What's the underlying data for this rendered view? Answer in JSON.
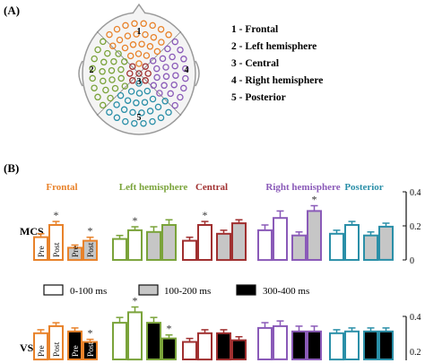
{
  "panel_a_label": "(A)",
  "panel_b_label": "(B)",
  "region_legend": [
    "1 - Frontal",
    "2 - Left hemisphere",
    "3 - Central",
    "4 - Right hemisphere",
    "5 - Posterior"
  ],
  "region_numbers": [
    "1",
    "2",
    "3",
    "4",
    "5"
  ],
  "colors": {
    "frontal": "#e8822a",
    "left": "#7aa33a",
    "central": "#a03030",
    "right": "#8a5ab8",
    "posterior": "#2a8fa8",
    "gray_fill": "#c6c6c6",
    "black_fill": "#000000"
  },
  "time_legend": [
    "0-100 ms",
    "100-200 ms",
    "300-400 ms"
  ],
  "row_labels": [
    "MCS",
    "VS"
  ],
  "ytick_labels_visible": [
    "0.4",
    "0.2",
    "0"
  ],
  "chart_data": {
    "type": "bar",
    "group_titles": [
      "Frontal",
      "Left hemisphere",
      "Central",
      "Right hemisphere",
      "Posterior"
    ],
    "group_colors": [
      "#e8822a",
      "#7aa33a",
      "#a03030",
      "#8a5ab8",
      "#2a8fa8"
    ],
    "time_windows": [
      "0-100 ms",
      "100-200 ms",
      "300-400 ms"
    ],
    "pre_label": "Pre",
    "post_label": "Post",
    "yticks": [
      0.4,
      0.2,
      0
    ],
    "ylim": [
      0,
      0.4
    ],
    "significance_mark": "*",
    "rows": [
      {
        "name": "MCS",
        "groups": [
          {
            "bars": [
              {
                "v": 0.13,
                "e": 0.02,
                "fill": "white",
                "label": "Pre"
              },
              {
                "v": 0.2,
                "e": 0.02,
                "fill": "white",
                "label": "Post",
                "star": true
              },
              {
                "v": 0.07,
                "e": 0.015,
                "fill": "gray",
                "label": "Pre"
              },
              {
                "v": 0.11,
                "e": 0.02,
                "fill": "gray",
                "label": "Post",
                "star": true
              }
            ]
          },
          {
            "bars": [
              {
                "v": 0.12,
                "e": 0.02,
                "fill": "white"
              },
              {
                "v": 0.17,
                "e": 0.02,
                "fill": "white",
                "star": true
              },
              {
                "v": 0.16,
                "e": 0.03,
                "fill": "gray"
              },
              {
                "v": 0.2,
                "e": 0.03,
                "fill": "gray"
              }
            ]
          },
          {
            "bars": [
              {
                "v": 0.11,
                "e": 0.02,
                "fill": "white"
              },
              {
                "v": 0.2,
                "e": 0.02,
                "fill": "white",
                "star": true
              },
              {
                "v": 0.15,
                "e": 0.02,
                "fill": "gray"
              },
              {
                "v": 0.21,
                "e": 0.02,
                "fill": "gray"
              }
            ]
          },
          {
            "bars": [
              {
                "v": 0.17,
                "e": 0.03,
                "fill": "white"
              },
              {
                "v": 0.24,
                "e": 0.04,
                "fill": "white"
              },
              {
                "v": 0.14,
                "e": 0.02,
                "fill": "gray"
              },
              {
                "v": 0.28,
                "e": 0.03,
                "fill": "gray",
                "star": true
              }
            ]
          },
          {
            "bars": [
              {
                "v": 0.15,
                "e": 0.02,
                "fill": "white"
              },
              {
                "v": 0.2,
                "e": 0.02,
                "fill": "white"
              },
              {
                "v": 0.14,
                "e": 0.02,
                "fill": "gray"
              },
              {
                "v": 0.19,
                "e": 0.02,
                "fill": "gray"
              }
            ]
          }
        ]
      },
      {
        "name": "VS",
        "groups": [
          {
            "bars": [
              {
                "v": 0.15,
                "e": 0.02,
                "fill": "white",
                "label": "Pre"
              },
              {
                "v": 0.19,
                "e": 0.02,
                "fill": "white",
                "label": "Post"
              },
              {
                "v": 0.16,
                "e": 0.02,
                "fill": "black",
                "label": "Pre"
              },
              {
                "v": 0.1,
                "e": 0.015,
                "fill": "black",
                "label": "Post",
                "star": true
              }
            ]
          },
          {
            "bars": [
              {
                "v": 0.21,
                "e": 0.03,
                "fill": "white"
              },
              {
                "v": 0.27,
                "e": 0.03,
                "fill": "white",
                "star": true
              },
              {
                "v": 0.21,
                "e": 0.03,
                "fill": "black"
              },
              {
                "v": 0.12,
                "e": 0.02,
                "fill": "black",
                "star": true
              }
            ]
          },
          {
            "bars": [
              {
                "v": 0.1,
                "e": 0.02,
                "fill": "white"
              },
              {
                "v": 0.15,
                "e": 0.02,
                "fill": "white"
              },
              {
                "v": 0.15,
                "e": 0.02,
                "fill": "black"
              },
              {
                "v": 0.11,
                "e": 0.02,
                "fill": "black"
              }
            ]
          },
          {
            "bars": [
              {
                "v": 0.18,
                "e": 0.03,
                "fill": "white"
              },
              {
                "v": 0.19,
                "e": 0.03,
                "fill": "white"
              },
              {
                "v": 0.16,
                "e": 0.03,
                "fill": "black"
              },
              {
                "v": 0.16,
                "e": 0.03,
                "fill": "black"
              }
            ]
          },
          {
            "bars": [
              {
                "v": 0.15,
                "e": 0.02,
                "fill": "white"
              },
              {
                "v": 0.16,
                "e": 0.02,
                "fill": "white"
              },
              {
                "v": 0.16,
                "e": 0.02,
                "fill": "black"
              },
              {
                "v": 0.16,
                "e": 0.02,
                "fill": "black"
              }
            ]
          }
        ]
      }
    ]
  }
}
